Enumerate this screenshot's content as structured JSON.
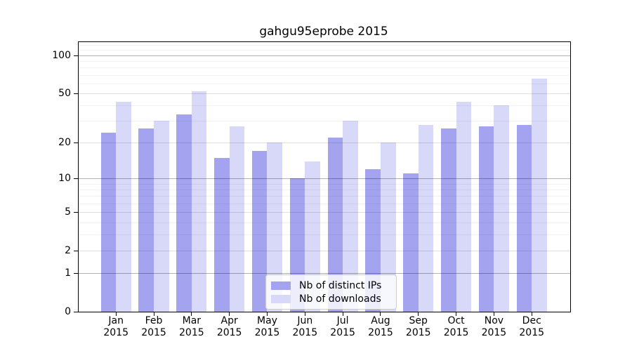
{
  "chart_data": {
    "type": "bar",
    "title": "gahgu95eprobe 2015",
    "categories": [
      "Jan",
      "Feb",
      "Mar",
      "Apr",
      "May",
      "Jun",
      "Jul",
      "Aug",
      "Sep",
      "Oct",
      "Nov",
      "Dec"
    ],
    "year_label": "2015",
    "series": [
      {
        "name": "Nb of distinct IPs",
        "color": "#a3a3ef",
        "values": [
          24,
          26,
          34,
          15,
          17,
          10,
          22,
          12,
          11,
          26,
          27,
          28
        ]
      },
      {
        "name": "Nb of downloads",
        "color": "#d8d8f8",
        "values": [
          43,
          30,
          52,
          27,
          20,
          14,
          30,
          20,
          28,
          43,
          40,
          65
        ]
      }
    ],
    "xlabel": "",
    "ylabel": "",
    "yscale": "log1p",
    "ylim": [
      0,
      127
    ],
    "yticks": [
      0,
      1,
      2,
      5,
      10,
      20,
      50,
      100
    ],
    "grid": {
      "major": [
        1,
        10,
        100
      ],
      "sub": [
        2,
        5,
        20,
        50
      ],
      "minor": [
        3,
        4,
        6,
        7,
        8,
        9,
        30,
        40,
        60,
        70,
        80,
        90,
        110,
        120
      ]
    },
    "grid_on": true,
    "legend_position": "inside-bottom-center"
  }
}
